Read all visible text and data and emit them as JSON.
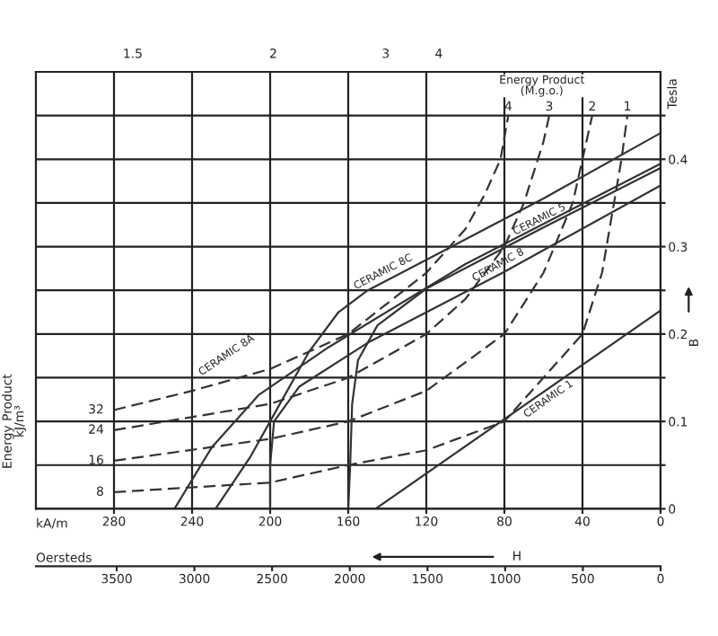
{
  "chart_data": {
    "type": "line",
    "xlabel": "H",
    "ylabel": "B",
    "x2label": "Oersteds",
    "xlim": [
      320,
      0
    ],
    "xticks": [
      280,
      240,
      200,
      160,
      120,
      80,
      40,
      0
    ],
    "x2lim": [
      4020,
      0
    ],
    "x2ticks": [
      3500,
      3000,
      2500,
      2000,
      1500,
      1000,
      500,
      0
    ],
    "ylim": [
      0,
      0.5
    ],
    "yticks": [
      0,
      {
        "value": 0.05,
        "label": null
      },
      0.1,
      {
        "value": 0.15,
        "label": null
      },
      0.2,
      {
        "value": 0.25,
        "label": null
      },
      0.3,
      {
        "value": 0.35,
        "label": null
      },
      0.4,
      {
        "value": 0.45,
        "label": null
      }
    ],
    "grid": true,
    "series": [
      {
        "color": "#333333",
        "line_style": "solid",
        "x": [
          146,
          0
        ],
        "values": [
          0,
          0.227
        ]
      },
      {
        "color": "#333333",
        "line_style": "solid",
        "x": [
          0,
          60,
          120,
          150,
          165,
          180,
          195,
          210,
          228
        ],
        "values": [
          0.43,
          0.355,
          0.285,
          0.25,
          0.225,
          0.18,
          0.12,
          0.06,
          0
        ]
      },
      {
        "color": "#333333",
        "line_style": "solid",
        "x": [
          0,
          100,
          170,
          206,
          230,
          249
        ],
        "values": [
          0.395,
          0.28,
          0.185,
          0.13,
          0.07,
          0
        ]
      },
      {
        "color": "#333333",
        "line_style": "solid",
        "x": [
          0,
          60,
          120,
          145,
          155,
          158,
          159,
          160
        ],
        "values": [
          0.39,
          0.322,
          0.252,
          0.21,
          0.17,
          0.12,
          0.05,
          0
        ]
      },
      {
        "color": "#333333",
        "line_style": "solid",
        "x": [
          0,
          81,
          150,
          185,
          198,
          200,
          200
        ],
        "values": [
          0.37,
          0.27,
          0.19,
          0.14,
          0.1,
          0.05,
          0
        ]
      },
      {
        "color": "#333333",
        "line_style": "dashed",
        "x": [
          280,
          200,
          160,
          120,
          80,
          40,
          30,
          20,
          17
        ],
        "values": [
          0.019,
          0.03,
          0.05,
          0.067,
          0.1,
          0.2,
          0.27,
          0.4,
          0.45
        ]
      },
      {
        "color": "#333333",
        "line_style": "dashed",
        "x": [
          280,
          200,
          160,
          120,
          80,
          60,
          45,
          38,
          35
        ],
        "values": [
          0.055,
          0.08,
          0.1,
          0.135,
          0.2,
          0.27,
          0.35,
          0.42,
          0.45
        ]
      },
      {
        "color": "#333333",
        "line_style": "dashed",
        "x": [
          280,
          200,
          160,
          120,
          100,
          80,
          70,
          60,
          57
        ],
        "values": [
          0.09,
          0.12,
          0.15,
          0.2,
          0.24,
          0.3,
          0.35,
          0.42,
          0.45
        ]
      },
      {
        "color": "#333333",
        "line_style": "dashed",
        "x": [
          280,
          240,
          200,
          160,
          120,
          100,
          90,
          82,
          78
        ],
        "values": [
          0.113,
          0.135,
          0.16,
          0.2,
          0.27,
          0.32,
          0.36,
          0.4,
          0.45
        ]
      }
    ],
    "annotations": [
      {
        "text": "CERAMIC 1",
        "x": 60,
        "y": 0.1337
      },
      {
        "text": "CERAMIC 8C",
        "x": 140,
        "y": 0.262
      },
      {
        "text": "CERAMIC 8A",
        "x": 206,
        "y": 0.13
      },
      {
        "text": "CERAMIC 5",
        "x": 60,
        "y": 0.322
      },
      {
        "text": "CERAMIC 8",
        "x": 81,
        "y": 0.27
      },
      {
        "text": "1",
        "x": 17,
        "y": 0.45
      },
      {
        "text": "2",
        "x": 35,
        "y": 0.45
      },
      {
        "text": "3",
        "x": 57,
        "y": 0.45
      },
      {
        "text": "4",
        "x": 78,
        "y": 0.45
      },
      {
        "text": "8",
        "x": 280,
        "y": 0.019
      },
      {
        "text": "16",
        "x": 280,
        "y": 0.055
      },
      {
        "text": "24",
        "x": 280,
        "y": 0.09
      },
      {
        "text": "32",
        "x": 280,
        "y": 0.113
      },
      "Energy Product\n(M.g.o.)",
      "Energy Product\nkJ/m³",
      "Tesla",
      "kA/m",
      "1.5",
      "2",
      "3",
      "4"
    ]
  }
}
